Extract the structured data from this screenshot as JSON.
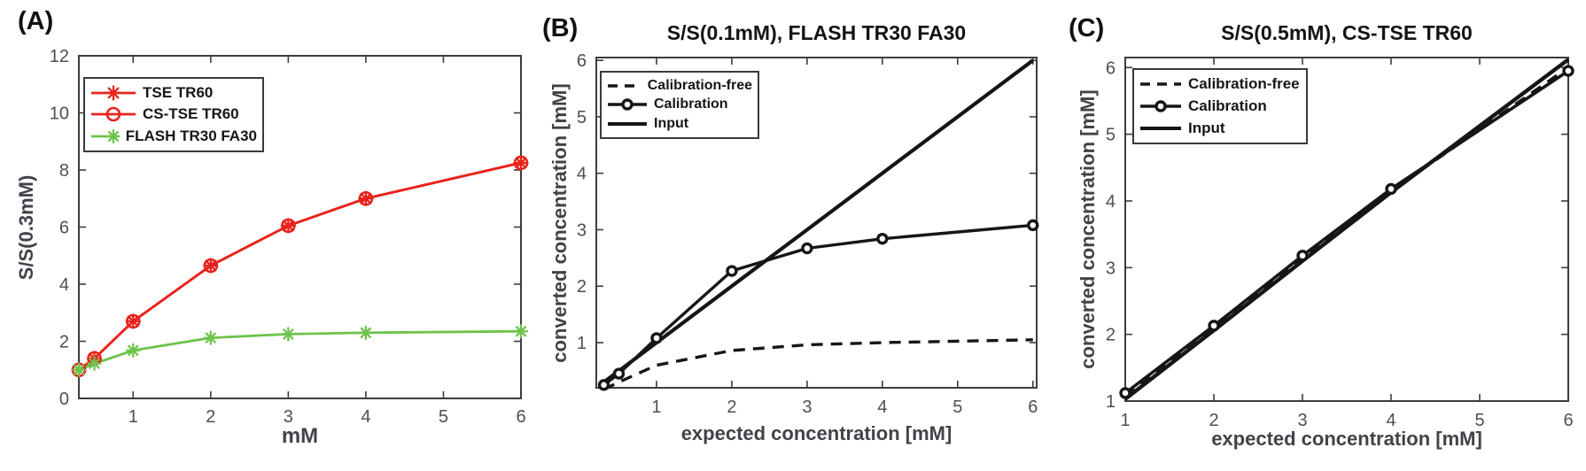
{
  "colors": {
    "red": "#e8231d",
    "green": "#6ec34c",
    "black_series": "#161616",
    "axis": "#3d3d3d",
    "tick_label": "#4e4e56"
  },
  "chart_data": [
    {
      "type": "line",
      "panel_label": "(A)",
      "title": "",
      "xlabel": "mM",
      "ylabel": "S/S(0.3mM)",
      "xlim": [
        0.3,
        6
      ],
      "ylim": [
        0,
        12
      ],
      "xticks": [
        1,
        2,
        3,
        4,
        5,
        6
      ],
      "yticks": [
        0,
        2,
        4,
        6,
        8,
        10,
        12
      ],
      "x": [
        0.3,
        0.5,
        1,
        2,
        3,
        4,
        6
      ],
      "legend_position": "top-left",
      "grid": false,
      "series": [
        {
          "name": "TSE TR60",
          "color": "#e8231d",
          "line": "solid",
          "line_width": 2.8,
          "marker": "asterisk",
          "marker_size": 7.5,
          "values": [
            1.0,
            1.4,
            2.7,
            4.65,
            6.05,
            7.0,
            8.25
          ]
        },
        {
          "name": "CS-TSE TR60",
          "color": "#e8231d",
          "line": "solid",
          "line_width": 2.8,
          "marker": "open-circle",
          "marker_size": 7,
          "values": [
            1.0,
            1.4,
            2.7,
            4.65,
            6.05,
            7.0,
            8.25
          ]
        },
        {
          "name": "FLASH TR30 FA30",
          "color": "#6ec34c",
          "line": "solid",
          "line_width": 2.8,
          "marker": "asterisk",
          "marker_size": 7,
          "values": [
            1.0,
            1.22,
            1.68,
            2.12,
            2.25,
            2.3,
            2.35
          ]
        }
      ]
    },
    {
      "type": "line",
      "panel_label": "(B)",
      "title": "S/S(0.1mM), FLASH TR30 FA30",
      "xlabel": "expected concentration [mM]",
      "ylabel": "converted concentration [mM]",
      "xlim": [
        0.2,
        6.05
      ],
      "ylim": [
        0.2,
        6.05
      ],
      "xticks": [
        1,
        2,
        3,
        4,
        5,
        6
      ],
      "yticks": [
        1,
        2,
        3,
        4,
        5,
        6
      ],
      "x": [
        0.3,
        0.5,
        1,
        2,
        3,
        4,
        6
      ],
      "legend_position": "top-left",
      "grid": false,
      "series": [
        {
          "name": "Calibration-free",
          "color": "#161616",
          "line": "dashed",
          "line_width": 3.4,
          "marker": "none",
          "marker_size": 0,
          "values": [
            0.17,
            0.3,
            0.6,
            0.86,
            0.96,
            1.0,
            1.05
          ]
        },
        {
          "name": "Calibration",
          "color": "#161616",
          "line": "solid",
          "line_width": 3.4,
          "marker": "filled-circle",
          "marker_size": 5,
          "values": [
            0.25,
            0.45,
            1.08,
            2.27,
            2.67,
            2.84,
            3.08
          ]
        },
        {
          "name": "Input",
          "color": "#161616",
          "line": "solid",
          "line_width": 4.2,
          "marker": "none",
          "marker_size": 0,
          "values": [
            0.3,
            0.5,
            1,
            2,
            3,
            4,
            6
          ]
        }
      ]
    },
    {
      "type": "line",
      "panel_label": "(C)",
      "title": "S/S(0.5mM), CS-TSE TR60",
      "xlabel": "expected concentration [mM]",
      "ylabel": "converted concentration [mM]",
      "xlim": [
        1,
        6
      ],
      "ylim": [
        1,
        6.15
      ],
      "xticks": [
        1,
        2,
        3,
        4,
        5,
        6
      ],
      "yticks": [
        1,
        2,
        3,
        4,
        5,
        6
      ],
      "x": [
        1,
        2,
        3,
        4,
        6
      ],
      "legend_position": "top-left",
      "grid": false,
      "series": [
        {
          "name": "Calibration-free",
          "color": "#161616",
          "line": "dashed",
          "line_width": 3.5,
          "marker": "none",
          "marker_size": 0,
          "values": [
            1.08,
            2.1,
            3.14,
            4.15,
            6.0
          ]
        },
        {
          "name": "Calibration",
          "color": "#161616",
          "line": "solid",
          "line_width": 3.6,
          "marker": "filled-circle",
          "marker_size": 5,
          "values": [
            1.12,
            2.13,
            3.18,
            4.18,
            5.95
          ]
        },
        {
          "name": "Input",
          "color": "#161616",
          "line": "solid",
          "line_width": 4.4,
          "marker": "none",
          "marker_size": 0,
          "values": [
            1.03,
            2.06,
            3.1,
            4.13,
            6.12
          ]
        }
      ]
    }
  ]
}
